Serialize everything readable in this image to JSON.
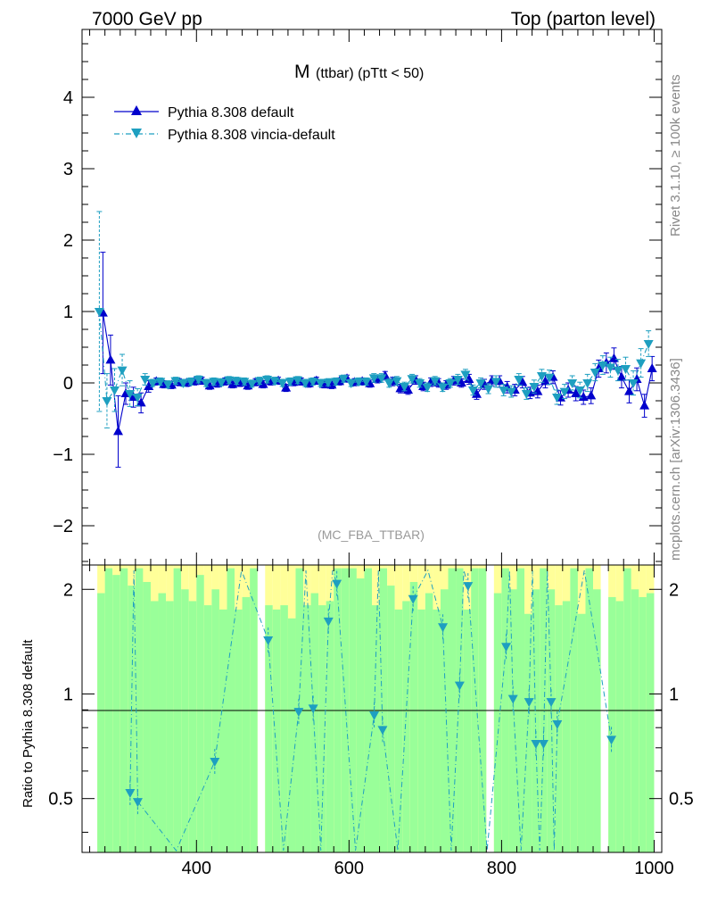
{
  "header": {
    "left_label": "7000 GeV pp",
    "right_label": "Top (parton level)"
  },
  "side": {
    "rivet": "Rivet 3.1.10, ≥ 100k events",
    "mcplots": "mcplots.cern.ch [arXiv:1306.3436]"
  },
  "colors": {
    "default": "#0000cc",
    "vincia": "#1e9fc0",
    "band_inner": "#99ff99",
    "band_outer": "#ffff99"
  },
  "chart_data": [
    {
      "type": "line",
      "title_main": "M",
      "title_sub": "(ttbar) (pTtt < 50)",
      "analysis_label": "(MC_FBA_TTBAR)",
      "xlim": [
        250,
        1010
      ],
      "ylim": [
        -2.55,
        4.95
      ],
      "xticks": [
        400,
        600,
        800,
        1000
      ],
      "yticks": [
        -2,
        -1,
        0,
        1,
        2,
        3,
        4
      ],
      "ytick_labels": [
        "−2",
        "−1",
        "0",
        "1",
        "2",
        "3",
        "4"
      ],
      "legend": [
        "Pythia 8.308 default",
        "Pythia 8.308 vincia-default"
      ],
      "legend_position": "top-left",
      "x": [
        275,
        285,
        295,
        305,
        315,
        325,
        335,
        345,
        355,
        365,
        375,
        385,
        395,
        405,
        415,
        425,
        435,
        445,
        455,
        465,
        475,
        485,
        495,
        505,
        515,
        525,
        535,
        545,
        555,
        565,
        575,
        585,
        595,
        605,
        615,
        625,
        635,
        645,
        655,
        665,
        675,
        685,
        695,
        705,
        715,
        725,
        735,
        745,
        755,
        765,
        775,
        785,
        795,
        805,
        815,
        825,
        835,
        845,
        855,
        865,
        875,
        885,
        895,
        905,
        915,
        925,
        935,
        945,
        955,
        965,
        975,
        985,
        995
      ],
      "series": [
        {
          "name": "Pythia 8.308 default",
          "marker": "triangle-up",
          "values": [
            0.98,
            0.32,
            -0.68,
            -0.15,
            -0.2,
            -0.28,
            -0.05,
            0.02,
            -0.02,
            -0.03,
            0.01,
            0.0,
            0.02,
            0.03,
            -0.04,
            -0.01,
            0.02,
            -0.02,
            0.0,
            -0.04,
            0.01,
            -0.02,
            0.02,
            0.03,
            -0.07,
            0.01,
            0.02,
            -0.01,
            0.03,
            -0.02,
            -0.03,
            0.02,
            0.06,
            0.01,
            0.02,
            -0.01,
            0.05,
            0.1,
            0.02,
            -0.08,
            -0.1,
            0.04,
            -0.05,
            0.01,
            0.0,
            -0.03,
            0.03,
            0.0,
            0.05,
            -0.16,
            -0.02,
            0.03,
            0.02,
            -0.06,
            -0.1,
            0.01,
            -0.14,
            -0.12,
            0.02,
            0.08,
            -0.21,
            -0.1,
            -0.15,
            -0.2,
            -0.18,
            0.2,
            0.28,
            0.34,
            0.08,
            -0.12,
            0.05,
            -0.32,
            0.2
          ],
          "errors": [
            0.85,
            0.35,
            0.5,
            0.15,
            0.14,
            0.14,
            0.08,
            0.05,
            0.05,
            0.05,
            0.05,
            0.05,
            0.05,
            0.05,
            0.05,
            0.05,
            0.05,
            0.05,
            0.05,
            0.05,
            0.05,
            0.05,
            0.05,
            0.05,
            0.05,
            0.05,
            0.05,
            0.05,
            0.05,
            0.05,
            0.05,
            0.05,
            0.05,
            0.05,
            0.05,
            0.05,
            0.05,
            0.06,
            0.06,
            0.06,
            0.06,
            0.06,
            0.06,
            0.06,
            0.06,
            0.06,
            0.06,
            0.06,
            0.07,
            0.07,
            0.07,
            0.07,
            0.08,
            0.08,
            0.08,
            0.08,
            0.08,
            0.09,
            0.09,
            0.09,
            0.1,
            0.1,
            0.1,
            0.1,
            0.11,
            0.12,
            0.14,
            0.15,
            0.15,
            0.16,
            0.16,
            0.16,
            0.17
          ]
        },
        {
          "name": "Pythia 8.308 vincia-default",
          "marker": "triangle-down",
          "values": [
            1.0,
            -0.25,
            -0.1,
            0.18,
            -0.15,
            -0.2,
            0.05,
            0.0,
            0.02,
            -0.02,
            0.03,
            0.0,
            0.02,
            0.05,
            0.0,
            0.02,
            0.01,
            0.04,
            0.03,
            0.02,
            -0.01,
            0.03,
            0.05,
            0.03,
            0.0,
            0.02,
            0.04,
            0.0,
            0.02,
            0.0,
            0.01,
            0.02,
            0.06,
            0.0,
            0.02,
            0.02,
            0.07,
            0.07,
            0.0,
            0.03,
            -0.05,
            0.06,
            0.0,
            -0.06,
            0.03,
            -0.06,
            0.0,
            0.05,
            0.12,
            -0.1,
            0.0,
            -0.08,
            0.02,
            -0.1,
            -0.12,
            0.05,
            -0.15,
            -0.05,
            0.1,
            0.08,
            -0.2,
            -0.12,
            0.0,
            -0.1,
            0.0,
            0.15,
            0.25,
            0.22,
            0.18,
            0.2,
            0.0,
            0.28,
            0.55
          ],
          "errors": [
            1.4,
            0.38,
            0.3,
            0.22,
            0.18,
            0.12,
            0.08,
            0.05,
            0.05,
            0.05,
            0.05,
            0.05,
            0.05,
            0.05,
            0.05,
            0.05,
            0.05,
            0.05,
            0.05,
            0.05,
            0.05,
            0.05,
            0.05,
            0.05,
            0.05,
            0.05,
            0.05,
            0.05,
            0.05,
            0.05,
            0.05,
            0.05,
            0.05,
            0.05,
            0.05,
            0.05,
            0.06,
            0.06,
            0.06,
            0.06,
            0.06,
            0.06,
            0.06,
            0.06,
            0.06,
            0.06,
            0.06,
            0.07,
            0.07,
            0.07,
            0.07,
            0.07,
            0.08,
            0.08,
            0.08,
            0.08,
            0.08,
            0.09,
            0.09,
            0.1,
            0.1,
            0.1,
            0.1,
            0.11,
            0.12,
            0.12,
            0.13,
            0.14,
            0.15,
            0.16,
            0.17,
            0.2,
            0.18
          ]
        }
      ]
    },
    {
      "type": "line",
      "ylabel": "Ratio to Pythia 8.308 default",
      "xlim": [
        250,
        1010
      ],
      "ylim": [
        0.35,
        2.35
      ],
      "yscale": "log",
      "xticks": [
        400,
        600,
        800,
        1000
      ],
      "yticks": [
        0.5,
        1,
        2
      ],
      "ytick_labels": [
        "0.5",
        "1",
        "2"
      ],
      "reference_line": 1,
      "bands": {
        "x_edges": [
          270,
          280,
          290,
          300,
          310,
          320,
          330,
          340,
          350,
          360,
          370,
          380,
          390,
          400,
          410,
          420,
          430,
          440,
          450,
          460,
          470,
          480,
          490,
          500,
          510,
          520,
          530,
          540,
          550,
          560,
          570,
          580,
          590,
          600,
          610,
          620,
          630,
          640,
          650,
          660,
          670,
          680,
          690,
          700,
          710,
          720,
          730,
          740,
          750,
          760,
          770,
          780,
          790,
          800,
          810,
          820,
          830,
          840,
          850,
          860,
          870,
          880,
          890,
          900,
          910,
          920,
          930,
          940,
          950,
          960,
          970,
          980,
          990,
          1000
        ],
        "inner_top": [
          1.95,
          2.3,
          2.2,
          2.3,
          2.05,
          2.3,
          2.1,
          1.85,
          1.95,
          1.85,
          2.3,
          2.0,
          1.85,
          2.2,
          1.8,
          2.0,
          1.75,
          2.3,
          1.75,
          1.9,
          2.3,
          0.34,
          1.8,
          1.75,
          1.8,
          1.65,
          2.3,
          1.8,
          1.95,
          1.8,
          1.85,
          2.3,
          2.3,
          2.3,
          2.15,
          2.3,
          1.8,
          2.3,
          2.05,
          1.75,
          1.85,
          2.1,
          1.75,
          1.95,
          1.75,
          2.0,
          2.3,
          2.3,
          1.75,
          2.3,
          2.3,
          0.34,
          1.95,
          2.3,
          2.0,
          2.3,
          1.7,
          2.0,
          2.3,
          2.0,
          1.8,
          1.85,
          2.3,
          1.7,
          2.3,
          2.0,
          0.34,
          1.9,
          1.85,
          2.3,
          2.0,
          1.9,
          1.95
        ],
        "outer_top": [
          2.35,
          2.35,
          2.35,
          2.35,
          2.35,
          2.35,
          2.35,
          2.35,
          2.35,
          2.35,
          2.35,
          2.35,
          2.35,
          2.35,
          2.35,
          2.35,
          2.35,
          2.35,
          2.35,
          2.35,
          2.35,
          0.34,
          2.35,
          2.35,
          2.35,
          2.35,
          2.35,
          2.35,
          2.35,
          2.35,
          2.35,
          2.35,
          2.35,
          2.35,
          2.35,
          2.35,
          2.35,
          2.35,
          2.35,
          2.35,
          2.35,
          2.35,
          2.35,
          2.35,
          2.35,
          2.35,
          2.35,
          2.35,
          2.35,
          2.35,
          2.35,
          0.34,
          2.35,
          2.35,
          2.35,
          2.35,
          2.35,
          2.35,
          2.35,
          2.35,
          2.35,
          2.35,
          2.35,
          2.35,
          2.35,
          2.35,
          0.34,
          2.35,
          2.35,
          2.35,
          2.35,
          2.35,
          2.35
        ]
      },
      "series": [
        {
          "name": "Pythia 8.308 vincia-default / Pythia 8.308 default",
          "marker": "triangle-down",
          "points": [
            [
              313,
              0.52
            ],
            [
              323,
              0.49
            ],
            [
              424,
              0.64
            ],
            [
              494,
              1.43
            ],
            [
              534,
              0.89
            ],
            [
              553,
              0.91
            ],
            [
              573,
              1.62
            ],
            [
              584,
              2.08
            ],
            [
              633,
              0.87
            ],
            [
              644,
              0.79
            ],
            [
              684,
              1.88
            ],
            [
              723,
              1.56
            ],
            [
              745,
              1.06
            ],
            [
              756,
              2.05
            ],
            [
              806,
              1.37
            ],
            [
              815,
              0.97
            ],
            [
              836,
              0.95
            ],
            [
              845,
              0.72
            ],
            [
              855,
              0.72
            ],
            [
              865,
              0.95
            ],
            [
              873,
              0.82
            ],
            [
              944,
              0.74
            ]
          ]
        }
      ]
    }
  ]
}
